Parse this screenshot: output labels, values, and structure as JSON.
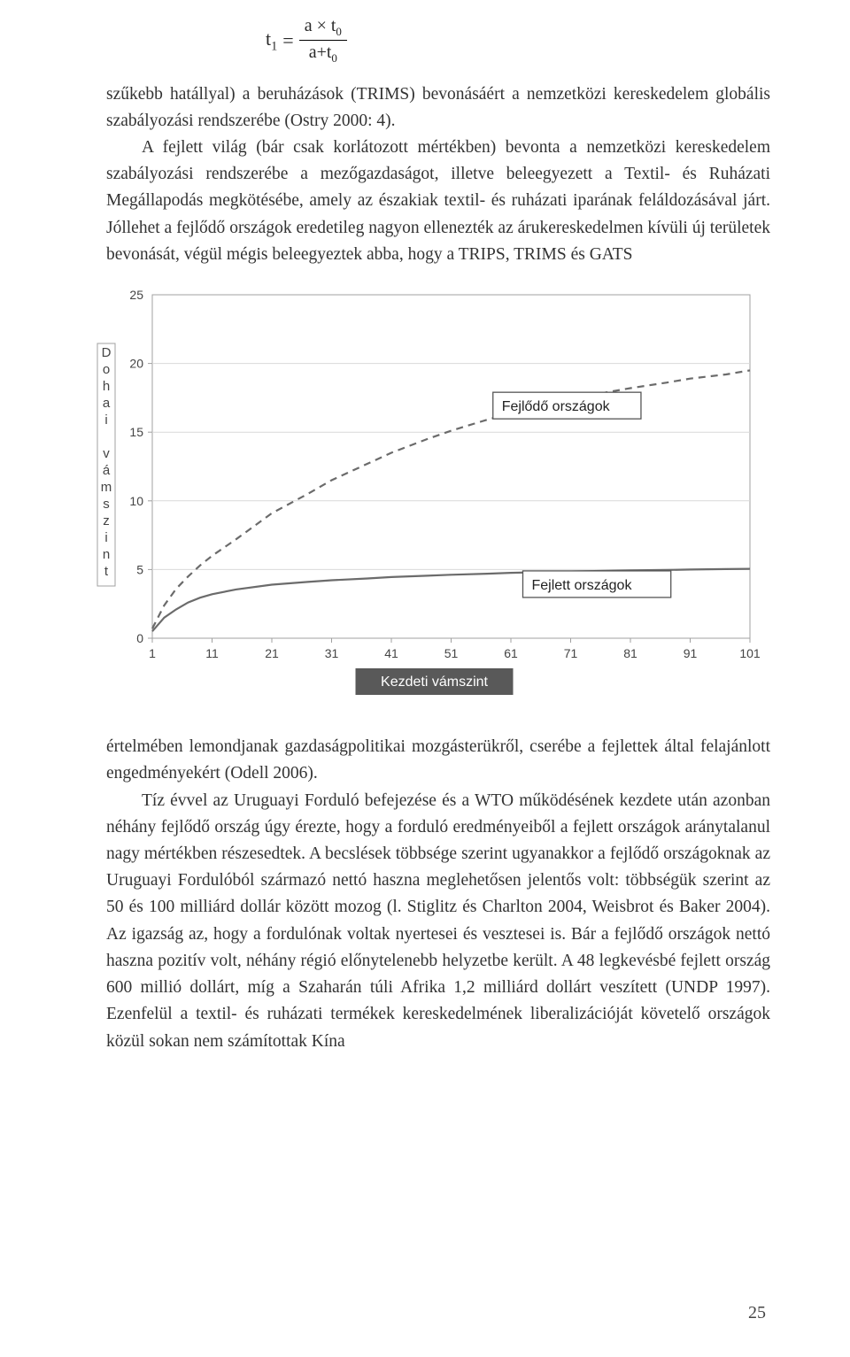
{
  "equation": {
    "lhs": "t",
    "lhs_sub": "1",
    "eq": "=",
    "numerator": "a × t",
    "numerator_sub": "0",
    "denominator": "a+t",
    "denominator_sub": "0"
  },
  "para1": "szűkebb hatállyal) a beruházások (TRIMS) bevonásáért a nemzetközi kereskedelem globális szabályozási rendszerébe (Ostry 2000: 4).",
  "para2": "A fejlett világ (bár csak korlátozott mértékben) bevonta a nemzetközi kereskedelem szabályozási rendszerébe a mezőgazdaságot, illetve beleegyezett a Textil- és Ruházati Megállapodás megkötésébe, amely az északiak textil- és ruházati iparának feláldozásával járt. Jóllehet a fejlődő országok eredetileg nagyon ellenezték az árukereskedelmen kívüli új területek bevonását, végül mégis beleegyeztek abba, hogy a TRIPS, TRIMS és GATS",
  "para3": "értelmében lemondjanak gazdaságpolitikai mozgásterükről, cserébe a fejlettek által felajánlott engedményekért (Odell 2006).",
  "para4": "Tíz évvel az Uruguayi Forduló befejezése és a WTO működésének kezdete után azonban néhány fejlődő ország úgy érezte, hogy a forduló eredményeiből a fejlett országok aránytalanul nagy mértékben részesedtek. A becslések többsége szerint ugyanakkor a fejlődő országoknak az Uruguayi Fordulóból származó nettó haszna meglehetősen jelentős volt: többségük szerint az 50 és 100 milliárd dollár között mozog (l. Stiglitz és Charlton 2004, Weisbrot és Baker 2004). Az igazság az, hogy a fordulónak voltak nyertesei és vesztesei is. Bár a fejlődő országok nettó haszna pozitív volt, néhány régió előnytelenebb helyzetbe került. A 48 legkevésbé fejlett ország 600 millió dollárt, míg a Szaharán túli Afrika 1,2 milliárd dollárt veszített (UNDP 1997). Ezenfelül a textil- és ruházati termékek kereskedelmének liberalizációját követelő országok közül sokan nem számítottak Kína",
  "page_number": "25",
  "chart": {
    "type": "line",
    "background_color": "#ffffff",
    "plot_border_color": "#a0a0a0",
    "grid_color": "#d9d9d9",
    "axis_text_color": "#444444",
    "title_fontsize": 15,
    "tick_fontsize": 14,
    "y_axis_title_letters": [
      "D",
      "o",
      "h",
      "a",
      "i",
      "",
      "v",
      "á",
      "m",
      "s",
      "z",
      "i",
      "n",
      "t"
    ],
    "y_top_tick": 25,
    "ylim": [
      0,
      25
    ],
    "yticks": [
      0,
      5,
      10,
      15,
      20
    ],
    "xlim": [
      1,
      101
    ],
    "xticks": [
      1,
      11,
      21,
      31,
      41,
      51,
      61,
      71,
      81,
      91,
      101
    ],
    "x_axis_title": "Kezdeti vámszint",
    "x_axis_title_box_bg": "#595959",
    "x_axis_title_box_text": "#ffffff",
    "series": [
      {
        "name": "Fejlődő országok",
        "dash": "8,6",
        "color": "#6b6b6b",
        "width": 2.2,
        "label_box": {
          "x": 58,
          "y": 17,
          "text": "Fejlődő országok"
        },
        "points": [
          [
            1,
            0.7
          ],
          [
            3,
            2.4
          ],
          [
            5,
            3.6
          ],
          [
            7,
            4.5
          ],
          [
            9,
            5.3
          ],
          [
            11,
            6.0
          ],
          [
            15,
            7.2
          ],
          [
            21,
            9.1
          ],
          [
            27,
            10.5
          ],
          [
            31,
            11.5
          ],
          [
            37,
            12.7
          ],
          [
            41,
            13.5
          ],
          [
            47,
            14.5
          ],
          [
            51,
            15.1
          ],
          [
            57,
            15.9
          ],
          [
            61,
            16.4
          ],
          [
            67,
            17.0
          ],
          [
            71,
            17.4
          ],
          [
            77,
            17.9
          ],
          [
            81,
            18.2
          ],
          [
            87,
            18.6
          ],
          [
            91,
            18.9
          ],
          [
            97,
            19.2
          ],
          [
            101,
            19.5
          ]
        ]
      },
      {
        "name": "Fejlett országok",
        "dash": "none",
        "color": "#6b6b6b",
        "width": 2.2,
        "label_box": {
          "x": 63,
          "y": 4,
          "text": "Fejlett országok"
        },
        "points": [
          [
            1,
            0.5
          ],
          [
            3,
            1.5
          ],
          [
            5,
            2.1
          ],
          [
            7,
            2.6
          ],
          [
            9,
            2.95
          ],
          [
            11,
            3.2
          ],
          [
            15,
            3.55
          ],
          [
            21,
            3.9
          ],
          [
            27,
            4.1
          ],
          [
            31,
            4.22
          ],
          [
            37,
            4.35
          ],
          [
            41,
            4.45
          ],
          [
            47,
            4.55
          ],
          [
            51,
            4.62
          ],
          [
            57,
            4.7
          ],
          [
            61,
            4.76
          ],
          [
            67,
            4.82
          ],
          [
            71,
            4.86
          ],
          [
            77,
            4.91
          ],
          [
            81,
            4.94
          ],
          [
            87,
            4.97
          ],
          [
            91,
            5.0
          ],
          [
            97,
            5.03
          ],
          [
            101,
            5.05
          ]
        ]
      }
    ]
  }
}
